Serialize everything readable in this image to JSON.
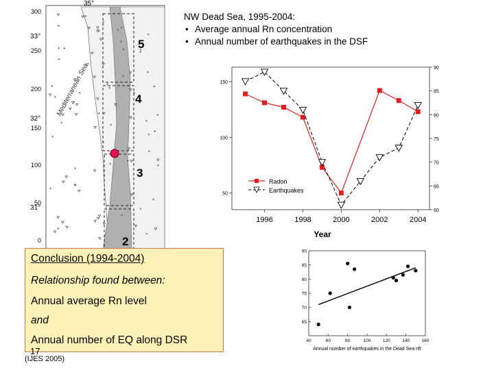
{
  "map": {
    "top_lon_label": "35°",
    "y_ticks": [
      "300",
      "250",
      "200",
      "150",
      "100",
      "50",
      "0"
    ],
    "lat_labels": [
      "33°",
      "32°",
      "31°"
    ],
    "sea_label": "Mediterranean Sea",
    "zone_labels": [
      "5",
      "4",
      "3",
      "2"
    ]
  },
  "title": {
    "heading": "NW Dead Sea, 1995-2004:",
    "bullets": [
      "Average annual Rn concentration",
      "Annual number of earthquakes in the DSF"
    ]
  },
  "conclusion": {
    "heading": "Conclusion (1994-2004)",
    "line1": "Relationship found between:",
    "line2": "Annual average Rn level",
    "line3": "and",
    "line4": "Annual number of EQ along DSR"
  },
  "slide_number": "17",
  "footnote": "(IJES 2005)",
  "chart_data": [
    {
      "type": "line",
      "x": [
        1995,
        1996,
        1997,
        1998,
        1999,
        2000,
        2001,
        2002,
        2003,
        2004
      ],
      "series": [
        {
          "name": "Radon",
          "axis": "left",
          "values": [
            139,
            131,
            127,
            118,
            73,
            50,
            null,
            142,
            133,
            123
          ],
          "color": "#e02020",
          "marker": "square",
          "line": "solid"
        },
        {
          "name": "Earthquakes",
          "axis": "right",
          "values": [
            87,
            89,
            85,
            81,
            70,
            61,
            66,
            71,
            73,
            82
          ],
          "color": "#000000",
          "marker": "triangle-down",
          "line": "dashed"
        }
      ],
      "xlabel": "Year",
      "x_ticks": [
        1996,
        1998,
        2000,
        2002,
        2004
      ],
      "xlim": [
        1994.3,
        2004.6
      ],
      "ylim_left": [
        35,
        163
      ],
      "y_ticks_left": [
        50,
        100,
        150
      ],
      "ylim_right": [
        60,
        90
      ],
      "y_ticks_right": [
        60,
        65,
        70,
        75,
        80,
        85,
        90
      ],
      "legend": "lower-left",
      "grid": false
    },
    {
      "type": "scatter",
      "x": [
        50,
        62,
        80,
        82,
        87,
        127,
        130,
        137,
        142,
        150
      ],
      "y": [
        64,
        75,
        85.5,
        70,
        83.5,
        80.5,
        79.5,
        81.5,
        84.5,
        83
      ],
      "trendline": {
        "x": [
          50,
          150
        ],
        "y": [
          71,
          84
        ]
      },
      "xlabel": "Annual number of earthquakes in the Dead Sea rift",
      "xlim": [
        40,
        160
      ],
      "x_ticks": [
        40,
        60,
        80,
        100,
        120,
        140,
        160
      ],
      "ylim": [
        60,
        90
      ],
      "y_ticks": [
        65,
        70,
        75,
        80,
        85,
        90
      ],
      "grid": false
    }
  ]
}
